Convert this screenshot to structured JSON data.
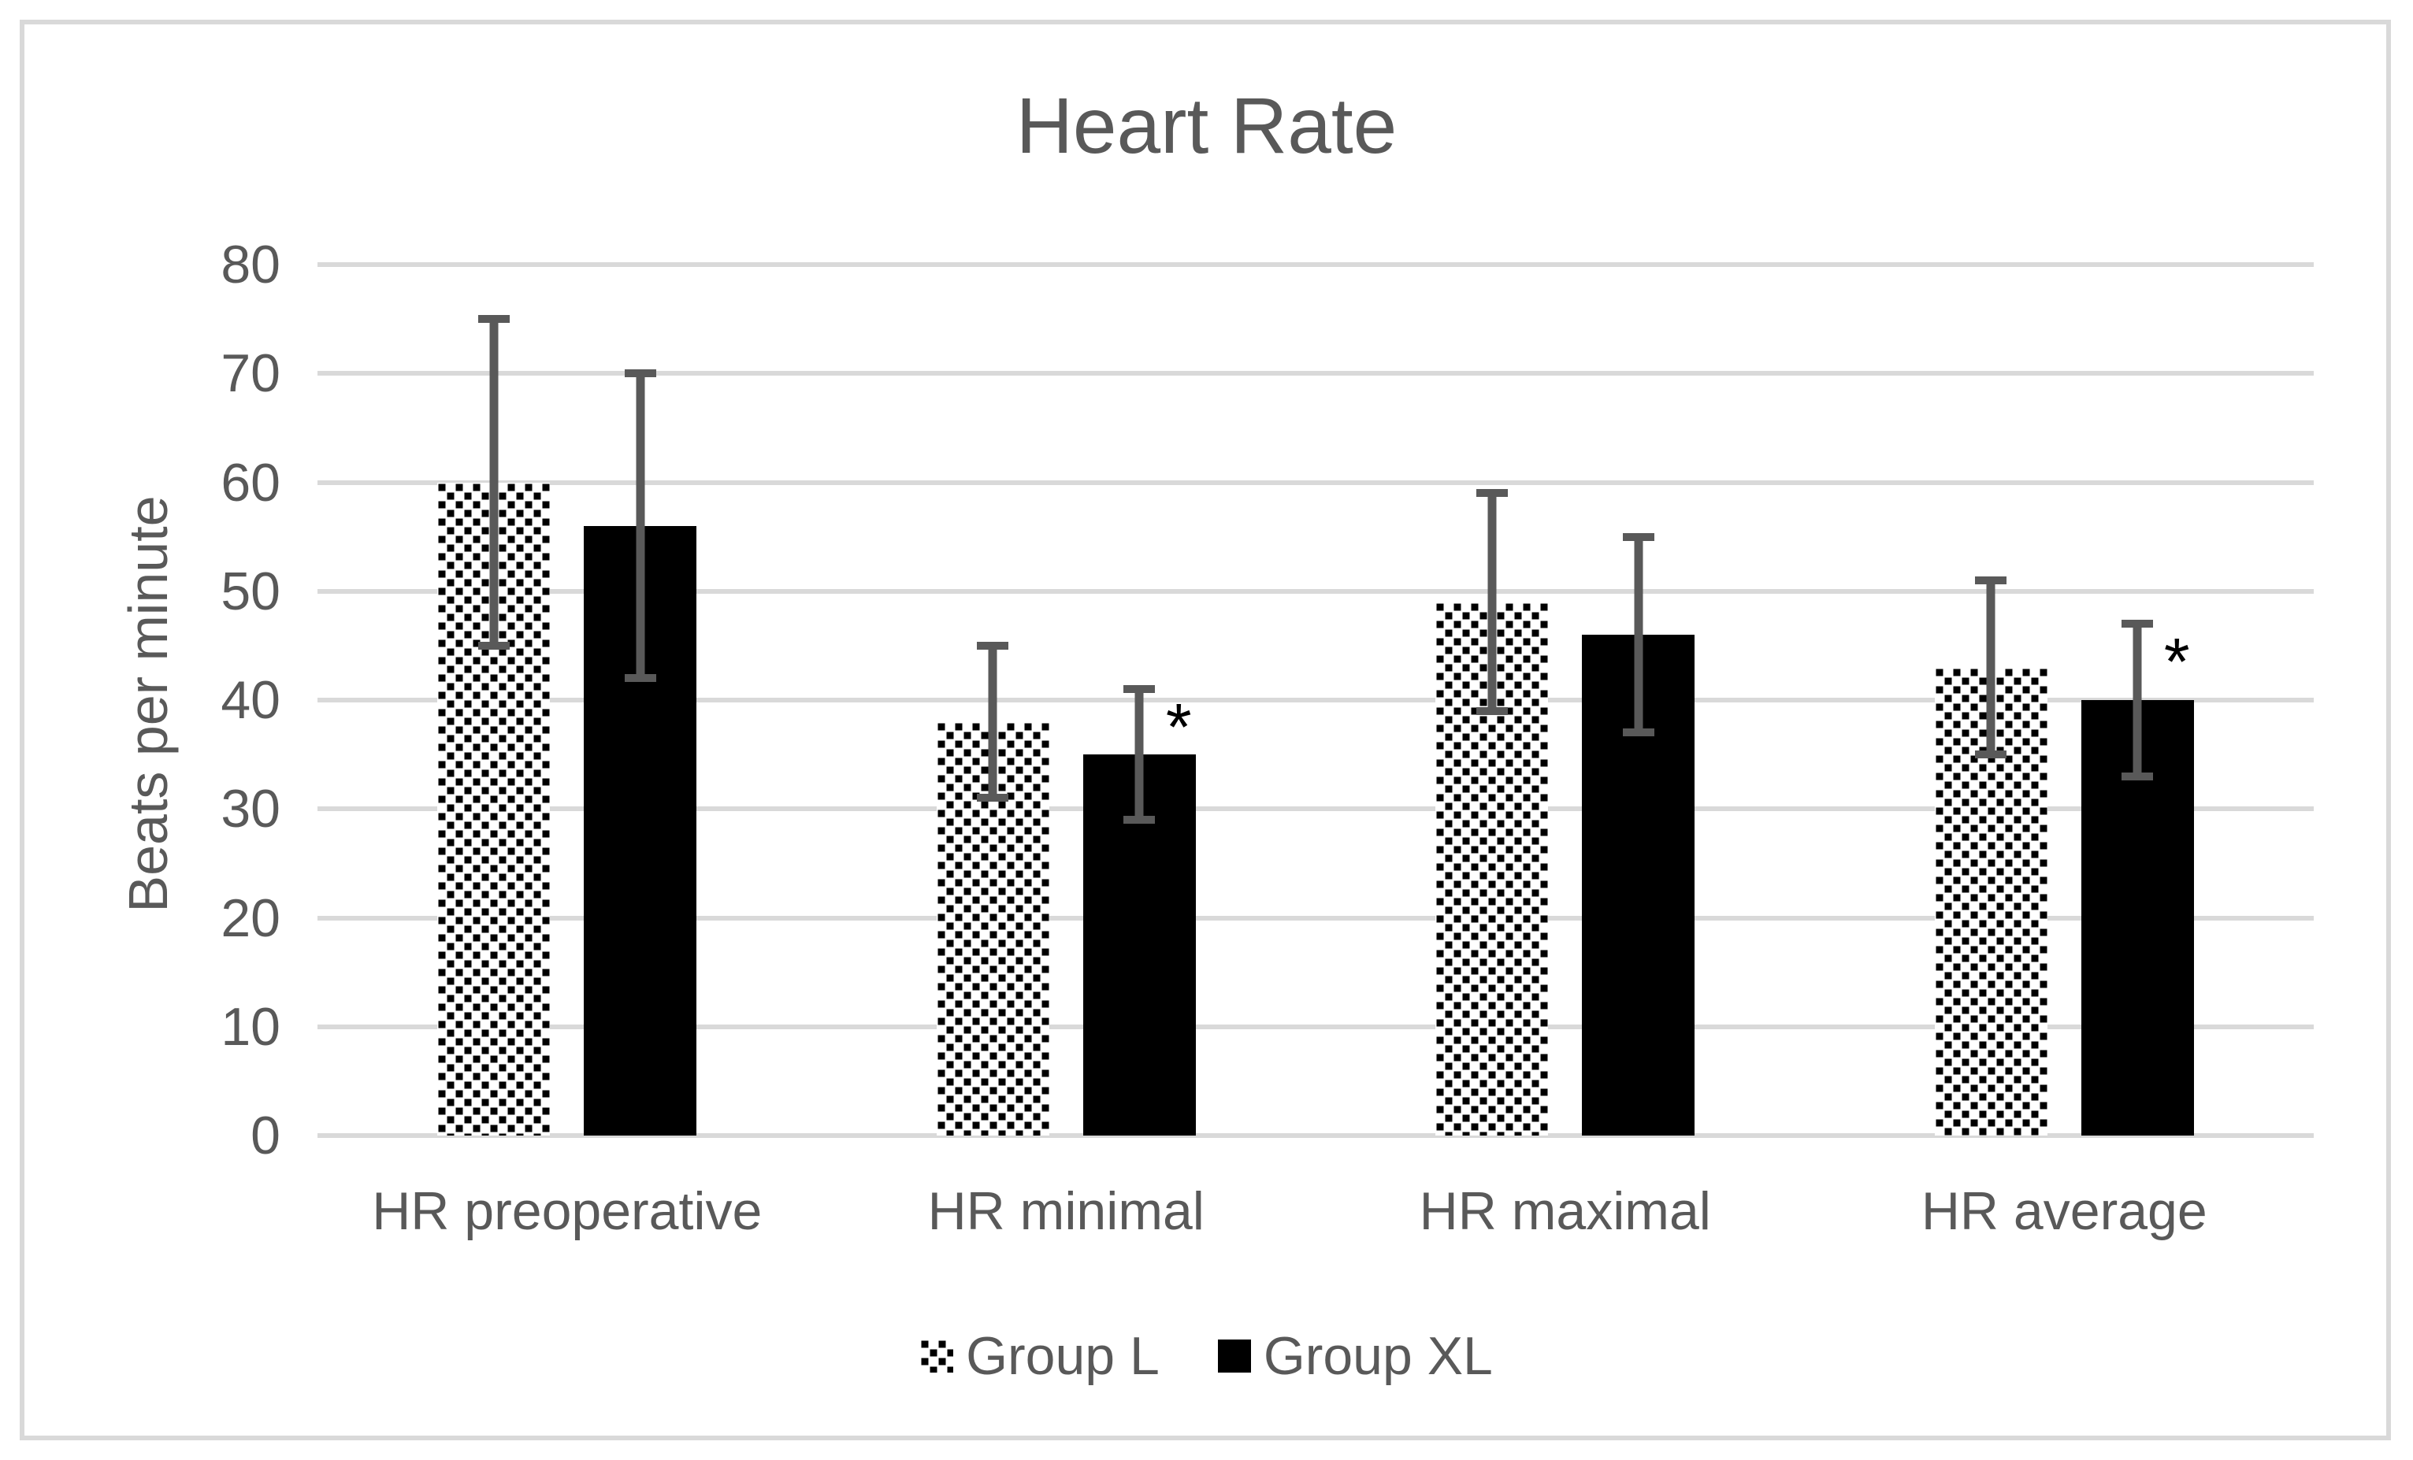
{
  "title": "Heart Rate",
  "y_axis": {
    "label": "Beats per minute",
    "min": 0,
    "max": 80,
    "tick_step": 10,
    "ticks": [
      0,
      10,
      20,
      30,
      40,
      50,
      60,
      70,
      80
    ]
  },
  "legend": {
    "position": "bottom",
    "items": [
      {
        "label": "Group L",
        "swatch": "dotted-pattern"
      },
      {
        "label": "Group XL",
        "swatch": "solid-black"
      }
    ]
  },
  "chart_data": {
    "type": "bar",
    "title": "Heart Rate",
    "xlabel": "",
    "ylabel": "Beats per minute",
    "ylim": [
      0,
      80
    ],
    "ytick_step": 10,
    "grid": true,
    "legend_position": "bottom",
    "categories": [
      "HR preoperative",
      "HR minimal",
      "HR maximal",
      "HR average"
    ],
    "series": [
      {
        "name": "Group L",
        "fill": "dotted-pattern",
        "values": [
          60,
          38,
          49,
          43
        ],
        "error_low": [
          45,
          31,
          39,
          35
        ],
        "error_high": [
          75,
          45,
          59,
          51
        ],
        "significance": [
          "",
          "",
          "",
          ""
        ]
      },
      {
        "name": "Group XL",
        "fill": "solid-black",
        "values": [
          56,
          35,
          46,
          40
        ],
        "error_low": [
          42,
          29,
          37,
          33
        ],
        "error_high": [
          70,
          41,
          55,
          47
        ],
        "significance": [
          "",
          "*",
          "",
          "*"
        ]
      }
    ]
  },
  "colors": {
    "background": "#ffffff",
    "border": "#d9d9d9",
    "gridline": "#d9d9d9",
    "text": "#595959",
    "error_bar": "#595959",
    "bar_solid": "#000000",
    "bar_pattern_dot": "#000000",
    "bar_pattern_bg": "#ffffff"
  }
}
